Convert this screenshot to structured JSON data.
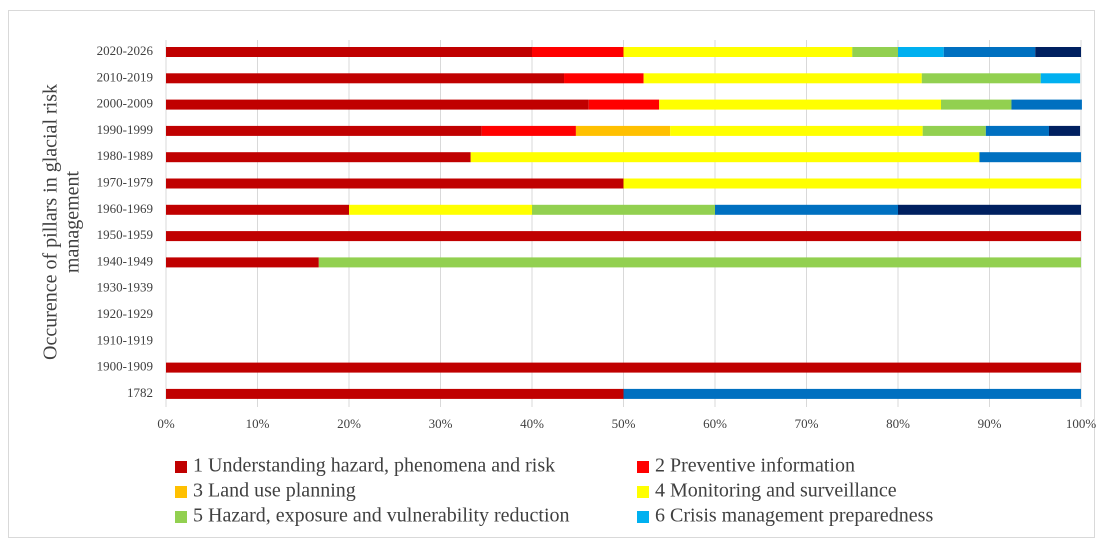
{
  "chart_data": {
    "type": "stacked-barh",
    "ylabel": [
      "Occurence of pillars in glacial risk",
      "management"
    ],
    "categories": [
      "2020-2026",
      "2010-2019",
      "2000-2009",
      "1990-1999",
      "1980-1989",
      "1970-1979",
      "1960-1969",
      "1950-1959",
      "1940-1949",
      "1930-1939",
      "1920-1929",
      "1910-1919",
      "1900-1909",
      "1782"
    ],
    "series": [
      {
        "name": "1 Understanding hazard, phenomena and risk",
        "color": "#c00000",
        "values": [
          40,
          43.5,
          46.2,
          34.5,
          33.3,
          50,
          20,
          100,
          16.7,
          0,
          0,
          0,
          100,
          50
        ]
      },
      {
        "name": "2 Preventive information",
        "color": "#ff0000",
        "values": [
          10,
          8.7,
          7.7,
          10.3,
          0,
          0,
          0,
          0,
          0,
          0,
          0,
          0,
          0,
          0
        ]
      },
      {
        "name": "3 Land use planning",
        "color": "#ffc000",
        "values": [
          0,
          0,
          0,
          10.3,
          0,
          0,
          0,
          0,
          0,
          0,
          0,
          0,
          0,
          0
        ]
      },
      {
        "name": "4 Monitoring and surveillance",
        "color": "#ffff00",
        "values": [
          25,
          30.4,
          30.8,
          27.6,
          55.6,
          50,
          20,
          0,
          0,
          0,
          0,
          0,
          0,
          0
        ]
      },
      {
        "name": "5 Hazard, exposure and vulnerability reduction",
        "color": "#92d050",
        "values": [
          5,
          13,
          7.7,
          6.9,
          0,
          0,
          20,
          0,
          83.3,
          0,
          0,
          0,
          0,
          0
        ]
      },
      {
        "name": "6 Crisis management preparedness",
        "color": "#00b0f0",
        "values": [
          5,
          4.3,
          0,
          0,
          0,
          0,
          0,
          0,
          0,
          0,
          0,
          0,
          0,
          0
        ]
      },
      {
        "name": null,
        "color": "#0070c0",
        "values": [
          10,
          0,
          7.7,
          6.9,
          11.1,
          0,
          20,
          0,
          0,
          0,
          0,
          0,
          0,
          50
        ]
      },
      {
        "name": null,
        "color": "#002060",
        "values": [
          5,
          0,
          0,
          3.4,
          0,
          0,
          20,
          0,
          0,
          0,
          0,
          0,
          0,
          0
        ]
      }
    ],
    "xlim": [
      0,
      100
    ],
    "xticks": [
      {
        "value": 0,
        "label": "0%"
      },
      {
        "value": 10,
        "label": "10%"
      },
      {
        "value": 20,
        "label": "20%"
      },
      {
        "value": 30,
        "label": "30%"
      },
      {
        "value": 40,
        "label": "40%"
      },
      {
        "value": 50,
        "label": "50%"
      },
      {
        "value": 60,
        "label": "60%"
      },
      {
        "value": 70,
        "label": "70%"
      },
      {
        "value": 80,
        "label": "80%"
      },
      {
        "value": 90,
        "label": "90%"
      },
      {
        "value": 100,
        "label": "100%"
      }
    ],
    "grid": true
  }
}
